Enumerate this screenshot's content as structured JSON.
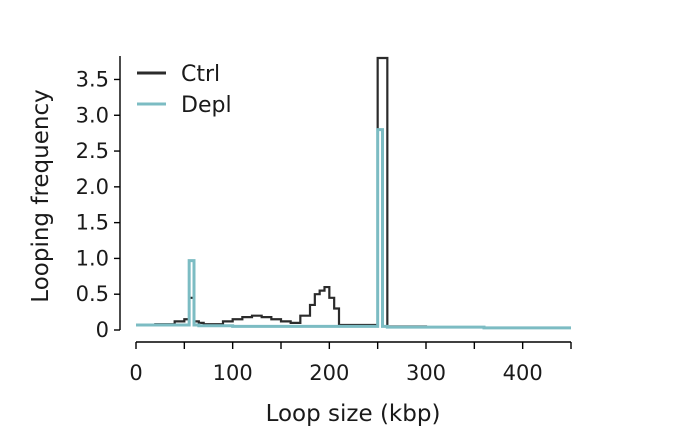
{
  "chart_data": {
    "type": "line",
    "title": "",
    "xlabel": "Loop size (kbp)",
    "ylabel": "Looping frequency",
    "xlim": [
      0,
      450
    ],
    "ylim": [
      0,
      3.8
    ],
    "xticks": [
      0,
      100,
      200,
      300,
      400
    ],
    "yticks": [
      0,
      0.5,
      1.0,
      1.5,
      2.0,
      2.5,
      3.0,
      3.5
    ],
    "ytick_labels": [
      "0",
      "0.5",
      "1.0",
      "1.5",
      "2.0",
      "2.5",
      "3.0",
      "3.5"
    ],
    "grid": false,
    "legend_position": "top-left",
    "series": [
      {
        "name": "Ctrl",
        "color": "#2b2b2b",
        "step": "post",
        "x": [
          0,
          20,
          40,
          50,
          55,
          60,
          65,
          70,
          80,
          90,
          100,
          110,
          120,
          130,
          140,
          150,
          160,
          170,
          180,
          185,
          190,
          195,
          200,
          205,
          210,
          220,
          230,
          240,
          250,
          260,
          300,
          360,
          450
        ],
        "y": [
          0.07,
          0.08,
          0.12,
          0.15,
          0.45,
          0.12,
          0.1,
          0.08,
          0.08,
          0.12,
          0.15,
          0.18,
          0.2,
          0.18,
          0.15,
          0.12,
          0.1,
          0.2,
          0.35,
          0.5,
          0.55,
          0.6,
          0.45,
          0.3,
          0.07,
          0.07,
          0.07,
          0.07,
          3.8,
          0.05,
          0.04,
          0.03,
          0.03
        ]
      },
      {
        "name": "Depl",
        "color": "#7cbcc3",
        "step": "post",
        "x": [
          0,
          50,
          55,
          60,
          65,
          100,
          150,
          200,
          250,
          255,
          260,
          300,
          360,
          450
        ],
        "y": [
          0.07,
          0.07,
          0.97,
          0.07,
          0.06,
          0.05,
          0.05,
          0.05,
          2.8,
          0.05,
          0.04,
          0.04,
          0.03,
          0.03
        ]
      }
    ]
  }
}
